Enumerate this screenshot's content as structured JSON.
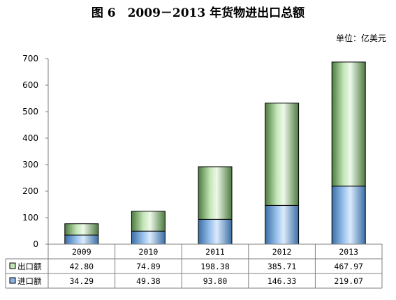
{
  "title": "图 6　2009－2013 年货物进出口总额",
  "unit": "单位：亿美元",
  "chart_data": {
    "type": "bar",
    "stacked": true,
    "categories": [
      "2009",
      "2010",
      "2011",
      "2012",
      "2013"
    ],
    "series": [
      {
        "name": "进口额",
        "values": [
          34.29,
          49.38,
          93.8,
          146.33,
          219.07
        ],
        "labels": [
          "34.29",
          "49.38",
          "93.80",
          "146.33",
          "219.07"
        ],
        "color": "#8db4e2"
      },
      {
        "name": "出口额",
        "values": [
          42.8,
          74.89,
          198.38,
          385.71,
          467.97
        ],
        "labels": [
          "42.80",
          "74.89",
          "198.38",
          "385.71",
          "467.97"
        ],
        "color": "#c3e6b7"
      }
    ],
    "yticks": [
      "0",
      "100",
      "200",
      "300",
      "400",
      "500",
      "600",
      "700"
    ],
    "ylim": [
      0,
      700
    ],
    "grid": false,
    "data_table": true
  }
}
